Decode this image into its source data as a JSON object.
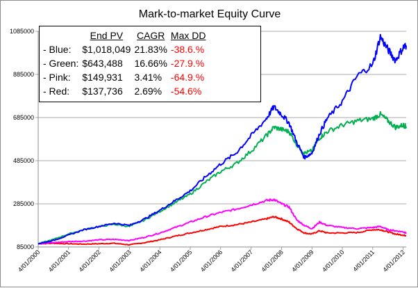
{
  "chart_data": {
    "type": "line",
    "title": "Mark-to-market Equity Curve",
    "xlabel": "",
    "ylabel": "",
    "x_tick_labels": [
      "4/01/2000",
      "4/01/2001",
      "4/01/2002",
      "4/01/2003",
      "4/01/2004",
      "4/01/2005",
      "4/01/2006",
      "4/01/2007",
      "4/01/2008",
      "4/01/2009",
      "4/01/2010",
      "4/01/2011",
      "4/01/2012"
    ],
    "y_tick_labels": [
      "85000",
      "285000",
      "485000",
      "685000",
      "885000",
      "1085000"
    ],
    "ylim": [
      85000,
      1085000
    ],
    "xlim": [
      2000.0,
      2012.1
    ],
    "grid": "horizontal",
    "x": [
      2000.0,
      2000.5,
      2001.0,
      2001.5,
      2002.0,
      2002.5,
      2003.0,
      2003.5,
      2004.0,
      2004.5,
      2005.0,
      2005.5,
      2006.0,
      2006.5,
      2007.0,
      2007.5,
      2007.75,
      2008.0,
      2008.25,
      2008.5,
      2008.75,
      2009.0,
      2009.25,
      2009.5,
      2010.0,
      2010.5,
      2011.0,
      2011.25,
      2011.5,
      2011.75,
      2012.0,
      2012.1
    ],
    "series": [
      {
        "name": "Blue",
        "color": "#0000ff",
        "values": [
          100000,
          115000,
          140000,
          165000,
          180000,
          195000,
          185000,
          215000,
          255000,
          300000,
          345000,
          410000,
          470000,
          520000,
          600000,
          680000,
          735000,
          700000,
          660000,
          570000,
          500000,
          520000,
          610000,
          680000,
          760000,
          880000,
          930000,
          1060000,
          1000000,
          950000,
          1010000,
          1018049
        ]
      },
      {
        "name": "Green",
        "color": "#00b050",
        "values": [
          100000,
          120000,
          145000,
          165000,
          180000,
          190000,
          180000,
          210000,
          250000,
          290000,
          330000,
          385000,
          435000,
          470000,
          530000,
          600000,
          640000,
          630000,
          620000,
          560000,
          520000,
          530000,
          590000,
          620000,
          650000,
          670000,
          680000,
          700000,
          670000,
          640000,
          650000,
          643488
        ]
      },
      {
        "name": "Pink",
        "color": "#ff00ff",
        "values": [
          100000,
          105000,
          110000,
          112000,
          118000,
          120000,
          115000,
          130000,
          150000,
          175000,
          200000,
          225000,
          245000,
          260000,
          280000,
          300000,
          305000,
          285000,
          270000,
          210000,
          185000,
          170000,
          200000,
          185000,
          175000,
          170000,
          175000,
          180000,
          165000,
          160000,
          155000,
          149931
        ]
      },
      {
        "name": "Red",
        "color": "#ff0000",
        "values": [
          100000,
          102000,
          100000,
          98000,
          100000,
          102000,
          95000,
          105000,
          118000,
          135000,
          150000,
          165000,
          180000,
          188000,
          200000,
          215000,
          225000,
          215000,
          200000,
          170000,
          150000,
          145000,
          160000,
          150000,
          150000,
          152000,
          165000,
          165000,
          155000,
          145000,
          140000,
          137736
        ]
      }
    ]
  },
  "legend": {
    "headers": {
      "name": "",
      "pv": "End PV",
      "cagr": "CAGR",
      "dd": "Max DD"
    },
    "rows": [
      {
        "label": "- Blue:",
        "pv": "$1,018,049",
        "cagr": "21.83%",
        "dd": "-38.6.%"
      },
      {
        "label": "- Green:",
        "pv": "$643,488",
        "cagr": "16.66%",
        "dd": "-27.9.%"
      },
      {
        "label": "- Pink:",
        "pv": "$149,931",
        "cagr": "3.41%",
        "dd": "-64.9.%"
      },
      {
        "label": "- Red:",
        "pv": "$137,736",
        "cagr": "2.69%",
        "dd": "-54.6%"
      }
    ]
  }
}
